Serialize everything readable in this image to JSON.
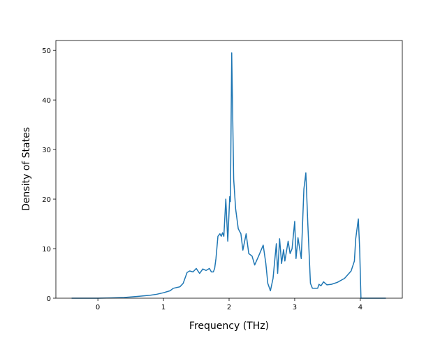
{
  "chart_data": {
    "type": "line",
    "x_label": "Frequency (THz)",
    "y_label": "Density of States",
    "x": [
      -0.4,
      0,
      0.2,
      0.4,
      0.6,
      0.8,
      0.9,
      1.0,
      1.1,
      1.15,
      1.25,
      1.3,
      1.36,
      1.4,
      1.45,
      1.5,
      1.55,
      1.6,
      1.65,
      1.7,
      1.73,
      1.76,
      1.78,
      1.8,
      1.83,
      1.86,
      1.88,
      1.9,
      1.92,
      1.95,
      1.98,
      2.01,
      2.02,
      2.04,
      2.07,
      2.1,
      2.14,
      2.18,
      2.21,
      2.26,
      2.3,
      2.35,
      2.39,
      2.45,
      2.52,
      2.56,
      2.59,
      2.63,
      2.67,
      2.72,
      2.74,
      2.77,
      2.8,
      2.83,
      2.85,
      2.9,
      2.93,
      2.96,
      3.0,
      3.02,
      3.05,
      3.1,
      3.14,
      3.17,
      3.2,
      3.24,
      3.27,
      3.35,
      3.37,
      3.4,
      3.44,
      3.49,
      3.56,
      3.65,
      3.76,
      3.86,
      3.91,
      3.93,
      3.97,
      3.99,
      4.01,
      4.39
    ],
    "series": [
      {
        "color": "#1f77b4",
        "values": [
          0,
          0,
          0.05,
          0.15,
          0.35,
          0.6,
          0.8,
          1.1,
          1.5,
          2.0,
          2.3,
          3,
          5.2,
          5.5,
          5.3,
          6.0,
          5.0,
          5.9,
          5.6,
          6.0,
          5.3,
          5.3,
          6,
          8,
          12.5,
          13,
          12.5,
          13.2,
          12.5,
          20,
          11.5,
          20.5,
          19.5,
          49.5,
          24,
          18,
          14,
          13,
          9.7,
          13,
          9,
          8.5,
          6.7,
          8.5,
          10.7,
          7,
          3,
          1.5,
          4,
          11,
          5,
          12,
          7,
          9.8,
          7.5,
          11.5,
          9,
          10,
          15.5,
          8,
          12.2,
          8,
          22,
          25.3,
          15,
          3,
          2,
          2,
          2.8,
          2.5,
          3.3,
          2.7,
          2.8,
          3.2,
          4,
          5.5,
          7.5,
          12,
          16,
          10,
          0,
          0
        ]
      }
    ],
    "xlim": [
      -0.64,
      4.64
    ],
    "ylim": [
      0,
      52
    ],
    "xticks": [
      0,
      1,
      2,
      3,
      4
    ],
    "yticks": [
      0,
      10,
      20,
      30,
      40,
      50
    ],
    "grid": false
  }
}
